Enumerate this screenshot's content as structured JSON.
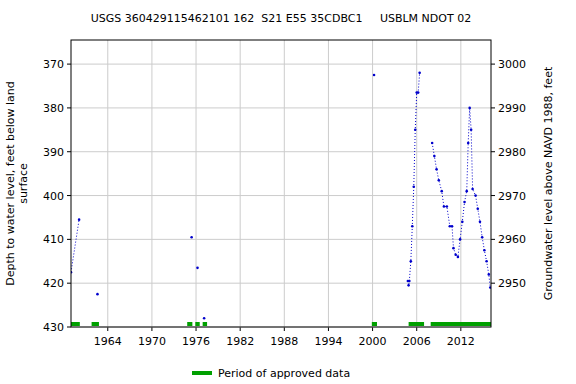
{
  "chart_data": {
    "type": "line",
    "title": "USGS 360429115462101 162  S21 E55 35CDBC1     USBLM NDOT 02",
    "y_label": [
      "Depth to water level, feet below land",
      "surface"
    ],
    "y2_label": "Groundwater level above NAVD 1988, feet",
    "x": [
      1959.0,
      1960.1,
      null,
      1962.6,
      null,
      1975.4,
      null,
      1976.2,
      null,
      1977.1,
      null,
      2000.2,
      null,
      2004.8,
      2004.9,
      2005.0,
      2005.2,
      2005.4,
      2005.6,
      2005.8,
      2006.0,
      2006.2,
      2006.4,
      null,
      2008.1,
      2008.4,
      2008.7,
      2009.0,
      2009.4,
      2009.7,
      2010.1,
      2010.5,
      2010.8,
      2011.0,
      2011.3,
      2011.6,
      2011.9,
      2012.2,
      2012.5,
      2012.8,
      2013.0,
      2013.2,
      2013.4,
      2013.6,
      2014.0,
      2014.3,
      2014.6,
      2014.9,
      2015.2,
      2015.5,
      2015.8,
      2016.0
    ],
    "series": [
      {
        "color": "#0000cc",
        "marker": "dot",
        "line_style": "dotted",
        "values": [
          417.5,
          405.5,
          null,
          422.5,
          null,
          409.5,
          null,
          416.5,
          null,
          428,
          null,
          372.5,
          null,
          419.5,
          420.5,
          419.5,
          415,
          407,
          398,
          385,
          376.5,
          376.5,
          372,
          null,
          388,
          391,
          394,
          396.5,
          399,
          402.5,
          402.5,
          407,
          407,
          412,
          413.5,
          414,
          410,
          406,
          401.5,
          399,
          388,
          380,
          385,
          398.5,
          400,
          403,
          406,
          409.5,
          412.5,
          415,
          418,
          421
        ]
      }
    ],
    "xlim": [
      1959.0,
      2016.1
    ],
    "xticks": [
      1964,
      1970,
      1976,
      1982,
      1988,
      1994,
      2000,
      2006,
      2012
    ],
    "ylim": [
      364.5,
      430
    ],
    "yticks": [
      370,
      380,
      390,
      400,
      410,
      420,
      430
    ],
    "y2lim": [
      3005.5,
      2940
    ],
    "y2ticks": [
      2950,
      2960,
      2970,
      2980,
      2990,
      3000
    ],
    "grid": true,
    "approved_periods": {
      "name": "Period of approved data",
      "color": "#00a000",
      "ranges": [
        [
          1959.0,
          1960.2
        ],
        [
          1961.8,
          1962.8
        ],
        [
          1974.8,
          1975.5
        ],
        [
          1975.9,
          1976.5
        ],
        [
          1976.9,
          1977.5
        ],
        [
          1999.9,
          2000.6
        ],
        [
          2004.9,
          2007.0
        ],
        [
          2007.9,
          2016.1
        ]
      ]
    }
  }
}
